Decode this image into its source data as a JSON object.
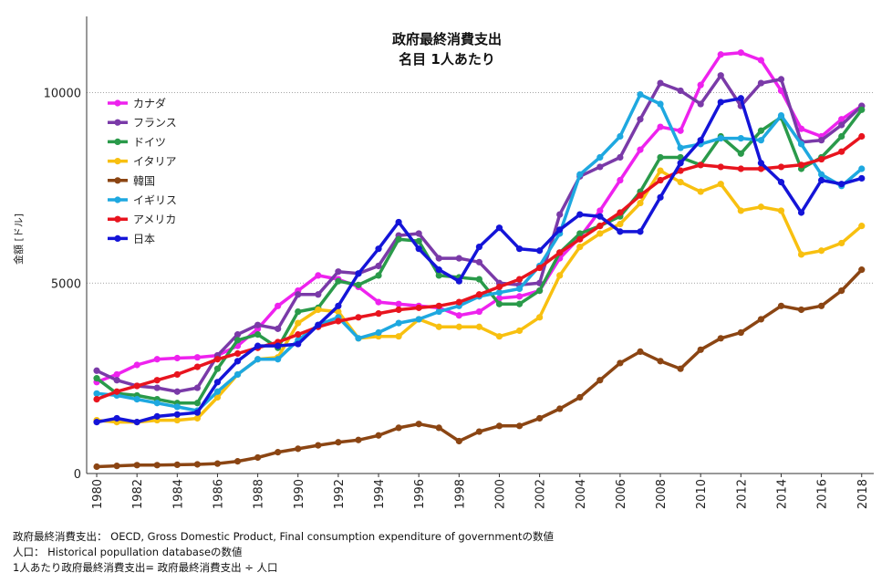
{
  "chart_data": {
    "type": "line",
    "title": "政府最終消費支出",
    "subtitle": "名目 1人あたり",
    "ylabel": "金額 [ドル]",
    "xlabel": "",
    "ylim": [
      0,
      12000
    ],
    "yticks": [
      0,
      5000,
      10000
    ],
    "ytick_labels": [
      "0",
      "5000",
      "10000"
    ],
    "xticks": [
      1980,
      1982,
      1984,
      1986,
      1988,
      1990,
      1992,
      1994,
      1996,
      1998,
      2000,
      2002,
      2004,
      2006,
      2008,
      2010,
      2012,
      2014,
      2016,
      2018
    ],
    "xtick_labels": [
      "1980",
      "1982",
      "1984",
      "1986",
      "1988",
      "1990",
      "1992",
      "1994",
      "1996",
      "1998",
      "2000",
      "2002",
      "2004",
      "2006",
      "2008",
      "2010",
      "2012",
      "2014",
      "2016",
      "2018"
    ],
    "x": [
      1980,
      1981,
      1982,
      1983,
      1984,
      1985,
      1986,
      1987,
      1988,
      1989,
      1990,
      1991,
      1992,
      1993,
      1994,
      1995,
      1996,
      1997,
      1998,
      1999,
      2000,
      2001,
      2002,
      2003,
      2004,
      2005,
      2006,
      2007,
      2008,
      2009,
      2010,
      2011,
      2012,
      2013,
      2014,
      2015,
      2016,
      2017,
      2018
    ],
    "grid": true,
    "legend_position": "top-left",
    "series": [
      {
        "name": "カナダ",
        "color": "#ee22ee",
        "values": [
          2400,
          2600,
          2850,
          3000,
          3030,
          3050,
          3100,
          3350,
          3800,
          4400,
          4800,
          5200,
          5100,
          4900,
          4500,
          4450,
          4400,
          4350,
          4150,
          4250,
          4600,
          4650,
          4800,
          5650,
          6200,
          6900,
          7700,
          8500,
          9100,
          9000,
          10200,
          11000,
          11050,
          10850,
          10050,
          9050,
          8850,
          9300,
          9650
        ]
      },
      {
        "name": "フランス",
        "color": "#7a3aa8",
        "values": [
          2700,
          2450,
          2300,
          2250,
          2150,
          2250,
          3100,
          3650,
          3900,
          3800,
          4700,
          4700,
          5300,
          5250,
          5450,
          6250,
          6300,
          5650,
          5650,
          5550,
          5000,
          4950,
          5000,
          6800,
          7800,
          8050,
          8300,
          9300,
          10250,
          10050,
          9700,
          10450,
          9650,
          10250,
          10350,
          8700,
          8750,
          9150,
          9650
        ]
      },
      {
        "name": "ドイツ",
        "color": "#2a9a4a",
        "values": [
          2500,
          2100,
          2050,
          1950,
          1850,
          1850,
          2750,
          3500,
          3650,
          3300,
          4250,
          4350,
          5050,
          4950,
          5200,
          6150,
          6100,
          5200,
          5150,
          5100,
          4450,
          4450,
          4800,
          5800,
          6300,
          6500,
          6750,
          7400,
          8300,
          8300,
          8100,
          8850,
          8400,
          9000,
          9350,
          8000,
          8300,
          8850,
          9550
        ]
      },
      {
        "name": "イタリア",
        "color": "#f8c010",
        "values": [
          1400,
          1350,
          1350,
          1400,
          1400,
          1450,
          2000,
          2600,
          3000,
          3050,
          3950,
          4300,
          4250,
          3550,
          3600,
          3600,
          4050,
          3850,
          3850,
          3850,
          3600,
          3750,
          4100,
          5200,
          5950,
          6300,
          6550,
          7100,
          7950,
          7650,
          7400,
          7600,
          6900,
          7000,
          6900,
          5750,
          5850,
          6050,
          6500
        ]
      },
      {
        "name": "韓国",
        "color": "#8b4513",
        "values": [
          180,
          200,
          220,
          220,
          230,
          240,
          260,
          320,
          420,
          560,
          650,
          740,
          820,
          880,
          1000,
          1200,
          1300,
          1200,
          850,
          1100,
          1250,
          1250,
          1450,
          1700,
          2000,
          2450,
          2900,
          3200,
          2950,
          2750,
          3250,
          3550,
          3700,
          4050,
          4400,
          4300,
          4400,
          4800,
          5350
        ]
      },
      {
        "name": "イギリス",
        "color": "#1ea8e0",
        "values": [
          2100,
          2050,
          1950,
          1850,
          1750,
          1650,
          2150,
          2600,
          3000,
          3000,
          3500,
          3900,
          4100,
          3550,
          3700,
          3950,
          4050,
          4250,
          4400,
          4650,
          4750,
          4850,
          5450,
          6300,
          7850,
          8300,
          8850,
          9950,
          9700,
          8550,
          8650,
          8800,
          8800,
          8750,
          9400,
          8650,
          7850,
          7550,
          8000
        ]
      },
      {
        "name": "アメリカ",
        "color": "#e8141e",
        "values": [
          1950,
          2150,
          2300,
          2450,
          2600,
          2800,
          3000,
          3150,
          3300,
          3450,
          3650,
          3850,
          4000,
          4100,
          4200,
          4300,
          4350,
          4400,
          4500,
          4700,
          4900,
          5100,
          5400,
          5800,
          6150,
          6500,
          6850,
          7300,
          7700,
          7950,
          8100,
          8050,
          8000,
          8000,
          8050,
          8100,
          8250,
          8450,
          8850
        ]
      },
      {
        "name": "日本",
        "color": "#1414d8",
        "values": [
          1350,
          1450,
          1350,
          1500,
          1550,
          1600,
          2400,
          2950,
          3350,
          3350,
          3400,
          3900,
          4400,
          5250,
          5900,
          6600,
          5900,
          5350,
          5050,
          5950,
          6450,
          5900,
          5850,
          6400,
          6800,
          6750,
          6350,
          6350,
          7250,
          8150,
          8750,
          9750,
          9850,
          8150,
          7650,
          6850,
          7700,
          7600,
          7750
        ]
      }
    ]
  },
  "notes": {
    "line1": "政府最終消費支出： OECD, Gross Domestic Product, Final consumption expenditure of governmentの数値",
    "line2": "人口： Historical popullation databaseの数値",
    "line3": "1人あたり政府最終消費支出= 政府最終消費支出 ÷ 人口"
  }
}
